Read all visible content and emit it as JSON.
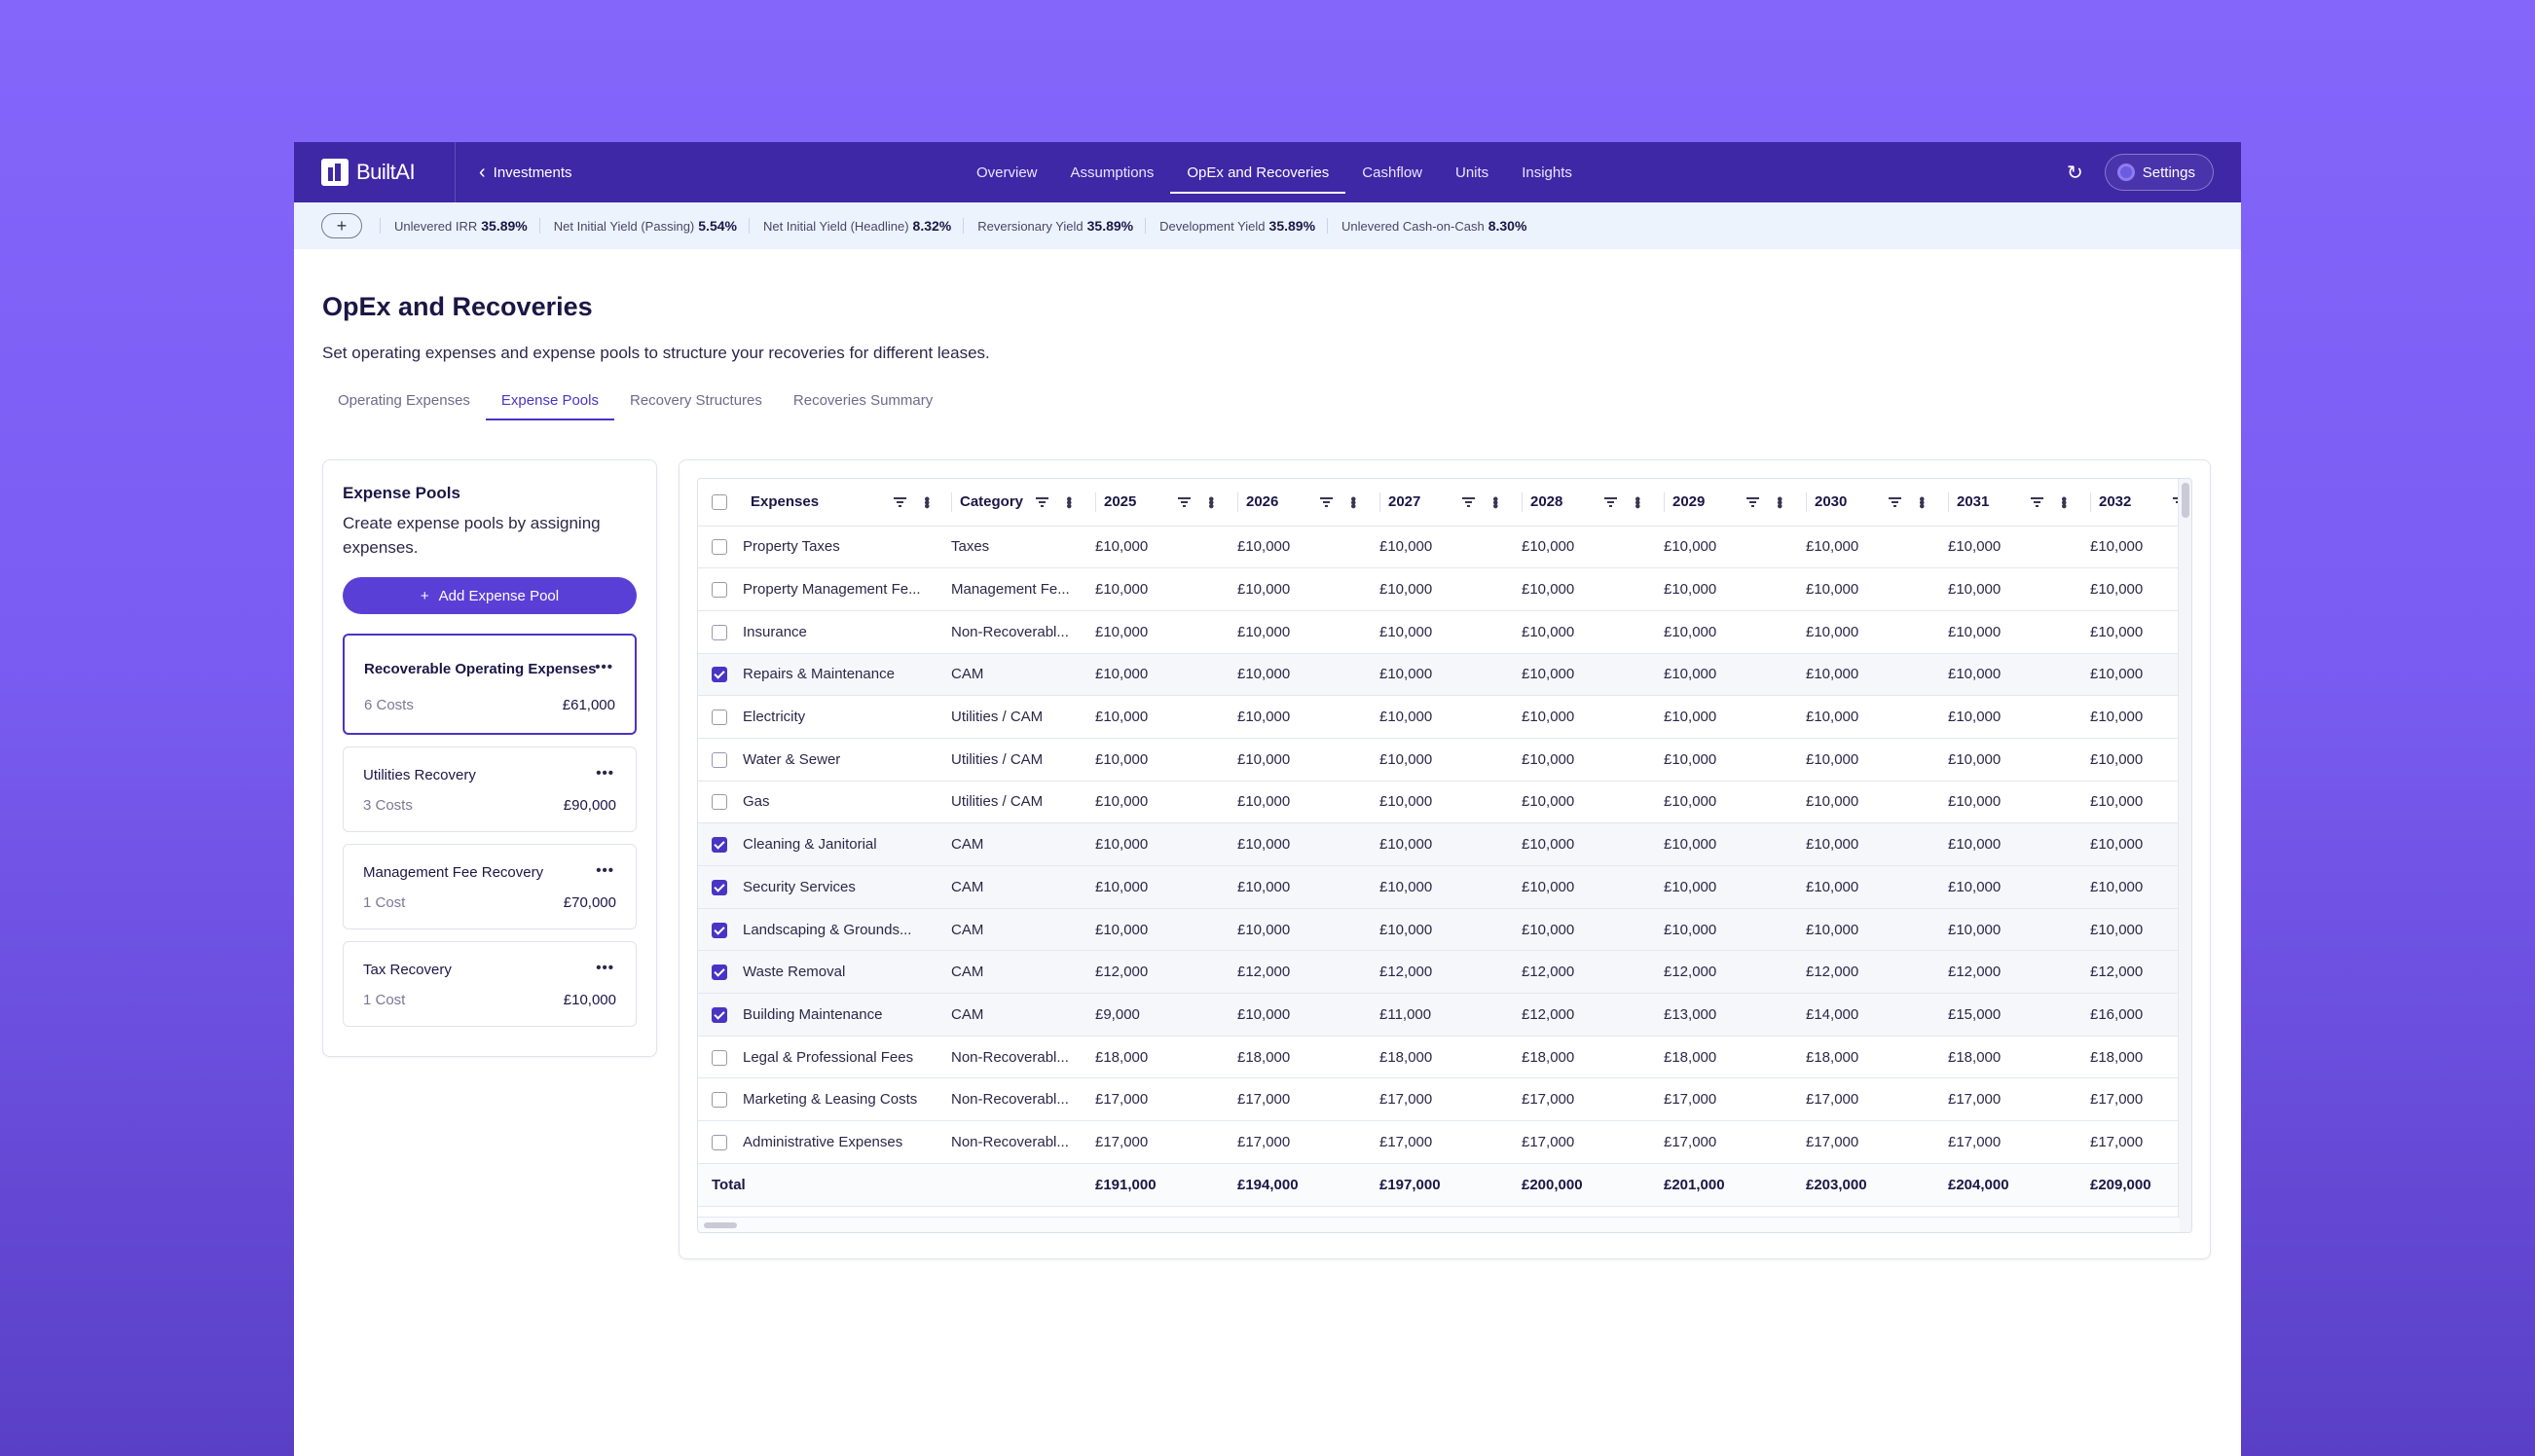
{
  "app": {
    "brand": "BuiltAI",
    "back_label": "Investments",
    "nav": [
      {
        "label": "Overview",
        "active": false
      },
      {
        "label": "Assumptions",
        "active": false
      },
      {
        "label": "OpEx and Recoveries",
        "active": true
      },
      {
        "label": "Cashflow",
        "active": false
      },
      {
        "label": "Units",
        "active": false
      },
      {
        "label": "Insights",
        "active": false
      }
    ],
    "settings_label": "Settings",
    "accent": "#3e28a6"
  },
  "kpis": [
    {
      "label": "Unlevered IRR",
      "value": "35.89%"
    },
    {
      "label": "Net Initial Yield (Passing)",
      "value": "5.54%"
    },
    {
      "label": "Net Initial Yield (Headline)",
      "value": "8.32%"
    },
    {
      "label": "Reversionary Yield",
      "value": "35.89%"
    },
    {
      "label": "Development Yield",
      "value": "35.89%"
    },
    {
      "label": "Unlevered Cash-on-Cash",
      "value": "8.30%"
    }
  ],
  "page": {
    "title": "OpEx and Recoveries",
    "subtitle": "Set operating expenses and expense pools to structure your recoveries for different leases.",
    "tabs": [
      {
        "label": "Operating Expenses",
        "active": false
      },
      {
        "label": "Expense Pools",
        "active": true
      },
      {
        "label": "Recovery Structures",
        "active": false
      },
      {
        "label": "Recoveries Summary",
        "active": false
      }
    ]
  },
  "pools_panel": {
    "title": "Expense Pools",
    "subtitle": "Create expense pools by assigning expenses.",
    "add_label": "Add Expense Pool",
    "pools": [
      {
        "name": "Recoverable Operating Expenses",
        "count": "6 Costs",
        "total": "£61,000",
        "active": true
      },
      {
        "name": "Utilities Recovery",
        "count": "3 Costs",
        "total": "£90,000",
        "active": false
      },
      {
        "name": "Management Fee Recovery",
        "count": "1 Cost",
        "total": "£70,000",
        "active": false
      },
      {
        "name": "Tax Recovery",
        "count": "1 Cost",
        "total": "£10,000",
        "active": false
      }
    ]
  },
  "table": {
    "headers": {
      "expense": "Expenses",
      "category": "Category",
      "years": [
        "2025",
        "2026",
        "2027",
        "2028",
        "2029",
        "2030",
        "2031",
        "2032"
      ]
    },
    "rows": [
      {
        "name": "Property Taxes",
        "category": "Taxes",
        "checked": false,
        "values": [
          "£10,000",
          "£10,000",
          "£10,000",
          "£10,000",
          "£10,000",
          "£10,000",
          "£10,000",
          "£10,000"
        ]
      },
      {
        "name": "Property Management Fe...",
        "category": "Management Fe...",
        "checked": false,
        "values": [
          "£10,000",
          "£10,000",
          "£10,000",
          "£10,000",
          "£10,000",
          "£10,000",
          "£10,000",
          "£10,000"
        ]
      },
      {
        "name": "Insurance",
        "category": "Non-Recoverabl...",
        "checked": false,
        "values": [
          "£10,000",
          "£10,000",
          "£10,000",
          "£10,000",
          "£10,000",
          "£10,000",
          "£10,000",
          "£10,000"
        ]
      },
      {
        "name": "Repairs & Maintenance",
        "category": "CAM",
        "checked": true,
        "values": [
          "£10,000",
          "£10,000",
          "£10,000",
          "£10,000",
          "£10,000",
          "£10,000",
          "£10,000",
          "£10,000"
        ]
      },
      {
        "name": "Electricity",
        "category": "Utilities / CAM",
        "checked": false,
        "values": [
          "£10,000",
          "£10,000",
          "£10,000",
          "£10,000",
          "£10,000",
          "£10,000",
          "£10,000",
          "£10,000"
        ]
      },
      {
        "name": "Water & Sewer",
        "category": "Utilities / CAM",
        "checked": false,
        "values": [
          "£10,000",
          "£10,000",
          "£10,000",
          "£10,000",
          "£10,000",
          "£10,000",
          "£10,000",
          "£10,000"
        ]
      },
      {
        "name": "Gas",
        "category": "Utilities / CAM",
        "checked": false,
        "values": [
          "£10,000",
          "£10,000",
          "£10,000",
          "£10,000",
          "£10,000",
          "£10,000",
          "£10,000",
          "£10,000"
        ]
      },
      {
        "name": "Cleaning & Janitorial",
        "category": "CAM",
        "checked": true,
        "values": [
          "£10,000",
          "£10,000",
          "£10,000",
          "£10,000",
          "£10,000",
          "£10,000",
          "£10,000",
          "£10,000"
        ]
      },
      {
        "name": "Security Services",
        "category": "CAM",
        "checked": true,
        "values": [
          "£10,000",
          "£10,000",
          "£10,000",
          "£10,000",
          "£10,000",
          "£10,000",
          "£10,000",
          "£10,000"
        ]
      },
      {
        "name": "Landscaping & Grounds...",
        "category": "CAM",
        "checked": true,
        "values": [
          "£10,000",
          "£10,000",
          "£10,000",
          "£10,000",
          "£10,000",
          "£10,000",
          "£10,000",
          "£10,000"
        ]
      },
      {
        "name": "Waste Removal",
        "category": "CAM",
        "checked": true,
        "values": [
          "£12,000",
          "£12,000",
          "£12,000",
          "£12,000",
          "£12,000",
          "£12,000",
          "£12,000",
          "£12,000"
        ]
      },
      {
        "name": "Building Maintenance",
        "category": "CAM",
        "checked": true,
        "values": [
          "£9,000",
          "£10,000",
          "£11,000",
          "£12,000",
          "£13,000",
          "£14,000",
          "£15,000",
          "£16,000"
        ]
      },
      {
        "name": "Legal & Professional Fees",
        "category": "Non-Recoverabl...",
        "checked": false,
        "values": [
          "£18,000",
          "£18,000",
          "£18,000",
          "£18,000",
          "£18,000",
          "£18,000",
          "£18,000",
          "£18,000"
        ]
      },
      {
        "name": "Marketing & Leasing Costs",
        "category": "Non-Recoverabl...",
        "checked": false,
        "values": [
          "£17,000",
          "£17,000",
          "£17,000",
          "£17,000",
          "£17,000",
          "£17,000",
          "£17,000",
          "£17,000"
        ]
      },
      {
        "name": "Administrative Expenses",
        "category": "Non-Recoverabl...",
        "checked": false,
        "values": [
          "£17,000",
          "£17,000",
          "£17,000",
          "£17,000",
          "£17,000",
          "£17,000",
          "£17,000",
          "£17,000"
        ]
      }
    ],
    "total": {
      "label": "Total",
      "values": [
        "£191,000",
        "£194,000",
        "£197,000",
        "£200,000",
        "£201,000",
        "£203,000",
        "£204,000",
        "£209,000"
      ]
    }
  }
}
